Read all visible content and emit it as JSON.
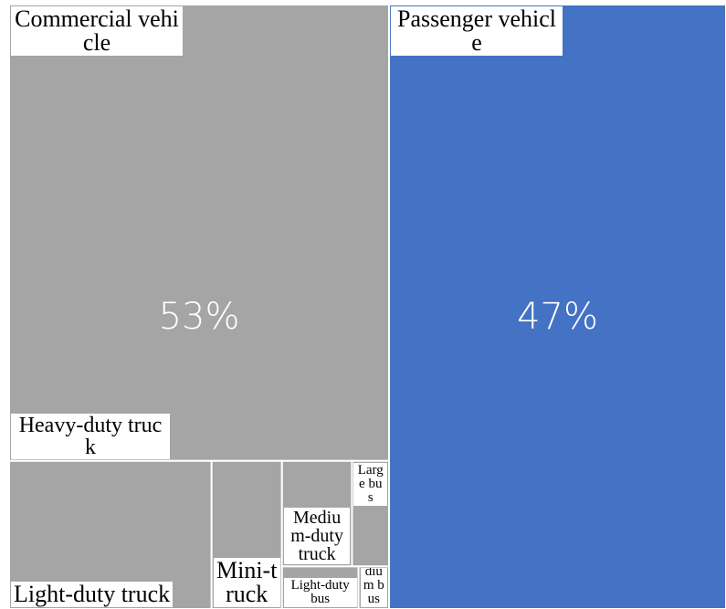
{
  "chart_data": {
    "type": "treemap",
    "series": [
      {
        "name": "Commercial vehicle",
        "color": "#a5a5a5",
        "value": 53,
        "value_label": "53%",
        "children": {
          "categories": [
            "Heavy-duty truck",
            "Light-duty truck",
            "Mini-truck",
            "Medium-duty truck",
            "Large bus",
            "Light-duty bus",
            "Medium bus"
          ],
          "values": [
            39.9,
            6.9,
            2.4,
            1.7,
            0.9,
            0.75,
            0.3
          ]
        }
      },
      {
        "name": "Passenger vehicle",
        "color": "#4472c4",
        "value": 47,
        "value_label": "47%"
      }
    ]
  }
}
